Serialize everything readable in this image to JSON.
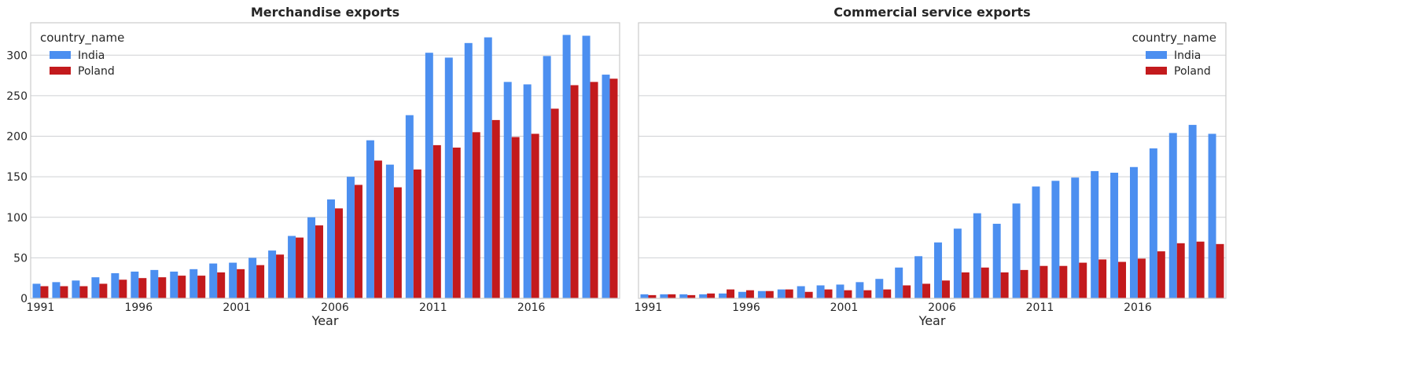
{
  "colors": {
    "India": "#4c8ff0",
    "Poland": "#c31a1d",
    "grid": "#cfd1d4",
    "frame": "#cccccc"
  },
  "chart_data": [
    {
      "type": "bar",
      "title": "Merchandise exports",
      "xlabel": "Year",
      "ylabel": "",
      "ylim": [
        0,
        340
      ],
      "yticks": [
        0,
        50,
        100,
        150,
        200,
        250,
        300
      ],
      "xticks": [
        "1991",
        "1996",
        "2001",
        "2006",
        "2011",
        "2016"
      ],
      "legend": {
        "title": "country_name",
        "placement": "top-left"
      },
      "grid": true,
      "categories": [
        "1991",
        "1992",
        "1993",
        "1994",
        "1995",
        "1996",
        "1997",
        "1998",
        "1999",
        "2000",
        "2001",
        "2002",
        "2003",
        "2004",
        "2005",
        "2006",
        "2007",
        "2008",
        "2009",
        "2010",
        "2011",
        "2012",
        "2013",
        "2014",
        "2015",
        "2016",
        "2017",
        "2018",
        "2019",
        "2020"
      ],
      "series": [
        {
          "name": "India",
          "values": [
            18,
            20,
            22,
            26,
            31,
            33,
            35,
            33,
            36,
            43,
            44,
            50,
            59,
            77,
            100,
            122,
            150,
            195,
            165,
            226,
            303,
            297,
            315,
            322,
            267,
            264,
            299,
            325,
            324,
            276
          ]
        },
        {
          "name": "Poland",
          "values": [
            15,
            15,
            15,
            18,
            23,
            25,
            26,
            28,
            28,
            32,
            36,
            41,
            54,
            75,
            90,
            111,
            140,
            170,
            137,
            159,
            189,
            186,
            205,
            220,
            199,
            203,
            234,
            263,
            267,
            271
          ]
        }
      ]
    },
    {
      "type": "bar",
      "title": "Commercial service exports",
      "xlabel": "Year",
      "ylabel": "",
      "ylim": [
        0,
        340
      ],
      "yticks": [
        0,
        50,
        100,
        150,
        200,
        250,
        300
      ],
      "xticks": [
        "1991",
        "1996",
        "2001",
        "2006",
        "2011",
        "2016"
      ],
      "legend": {
        "title": "country_name",
        "placement": "top-right"
      },
      "grid": true,
      "categories": [
        "1991",
        "1992",
        "1993",
        "1994",
        "1995",
        "1996",
        "1997",
        "1998",
        "1999",
        "2000",
        "2001",
        "2002",
        "2003",
        "2004",
        "2005",
        "2006",
        "2007",
        "2008",
        "2009",
        "2010",
        "2011",
        "2012",
        "2013",
        "2014",
        "2015",
        "2016",
        "2017",
        "2018",
        "2019",
        "2020"
      ],
      "series": [
        {
          "name": "India",
          "values": [
            5,
            5,
            5,
            5,
            6,
            8,
            9,
            11,
            15,
            16,
            17,
            20,
            24,
            38,
            52,
            69,
            86,
            105,
            92,
            117,
            138,
            145,
            149,
            157,
            155,
            162,
            185,
            204,
            214,
            203
          ]
        },
        {
          "name": "Poland",
          "values": [
            4,
            5,
            4,
            6,
            11,
            10,
            9,
            11,
            8,
            11,
            10,
            10,
            11,
            16,
            18,
            22,
            32,
            38,
            32,
            35,
            40,
            40,
            44,
            48,
            45,
            49,
            58,
            68,
            70,
            67
          ]
        }
      ]
    }
  ]
}
